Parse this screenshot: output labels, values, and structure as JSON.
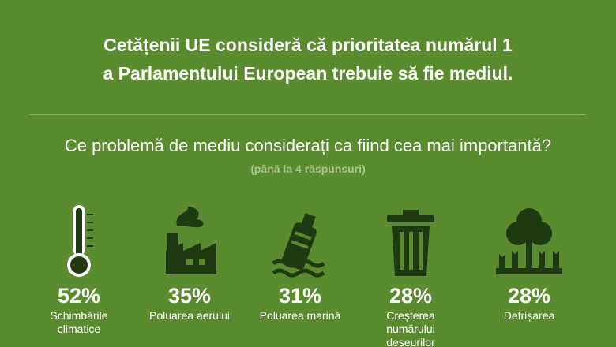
{
  "header": {
    "title_lines": [
      "Cetățenii UE consideră că prioritatea numărul 1",
      "a Parlamentului European trebuie să fie mediul."
    ]
  },
  "question": "Ce problemă de mediu considerați ca fiind cea mai importantă?",
  "question_note": "(până la 4 răspunsuri)",
  "items": [
    {
      "value": "52%",
      "label": "Schimbările climatice"
    },
    {
      "value": "35%",
      "label": "Poluarea aerului"
    },
    {
      "value": "31%",
      "label": "Poluarea marină"
    },
    {
      "value": "28%",
      "label": "Creșterea numărului deșeurilor"
    },
    {
      "value": "28%",
      "label": "Defrișarea"
    }
  ]
}
